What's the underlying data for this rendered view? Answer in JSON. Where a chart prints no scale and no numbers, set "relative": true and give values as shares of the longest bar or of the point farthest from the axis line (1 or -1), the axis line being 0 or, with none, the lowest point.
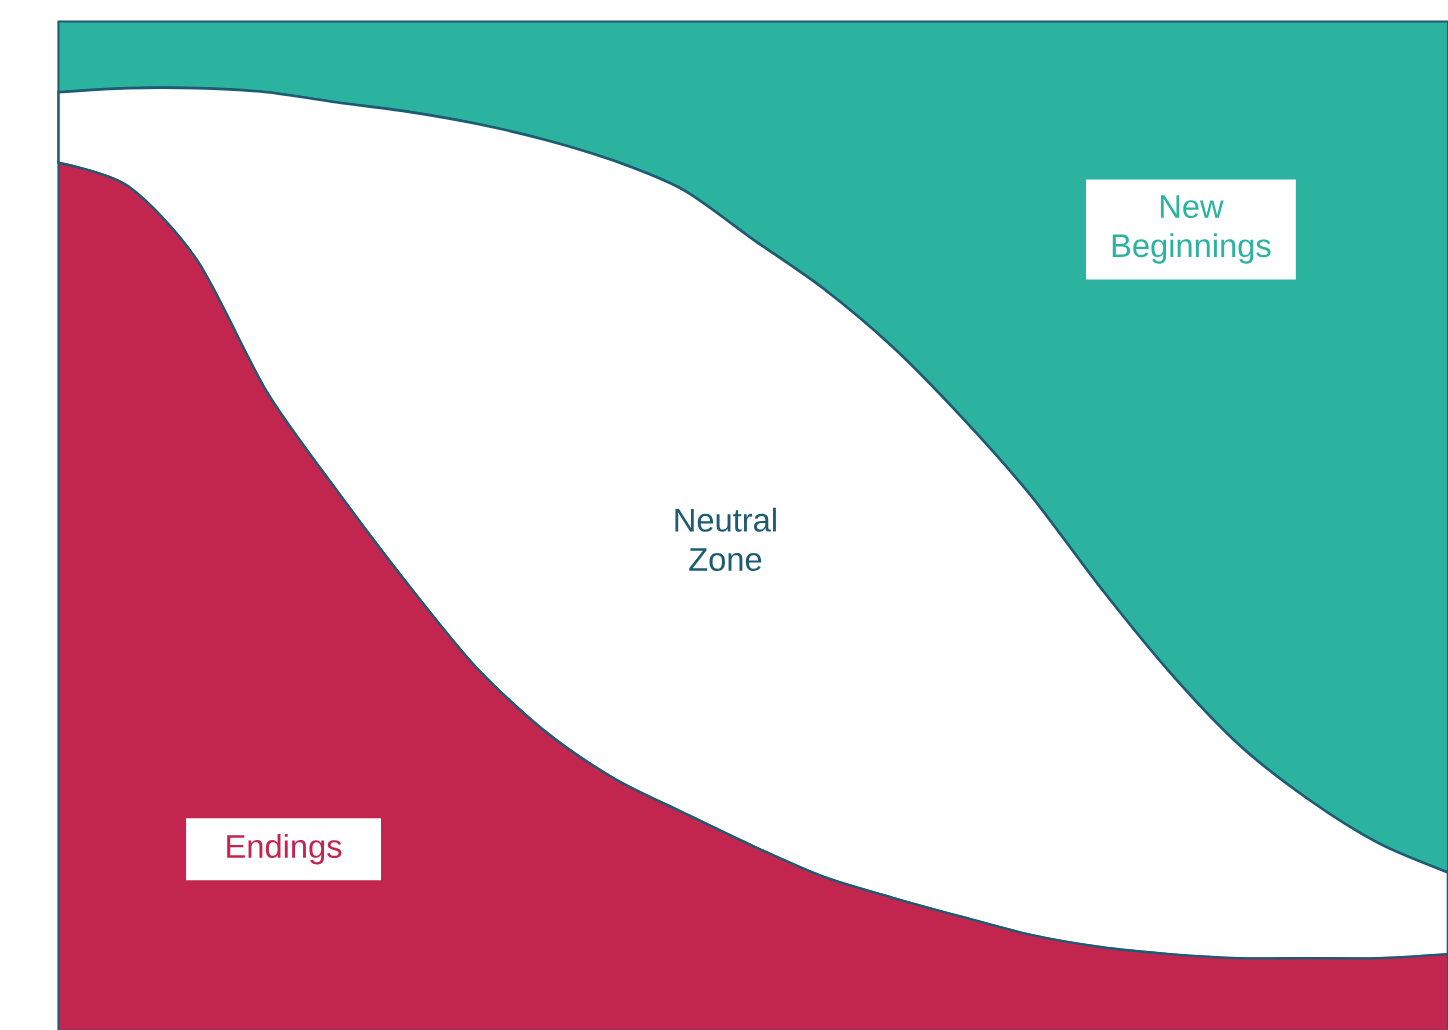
{
  "chart_data": {
    "type": "area",
    "stacked": true,
    "relative": true,
    "categories": [
      null,
      null,
      null,
      null,
      null,
      null,
      null,
      null,
      null,
      null,
      null,
      null,
      null,
      null,
      null,
      null,
      null,
      null,
      null,
      null,
      null
    ],
    "series": [
      {
        "name": "Endings",
        "color": "#c2264f",
        "values": [
          0.86,
          0.837,
          0.763,
          0.633,
          0.536,
          0.445,
          0.361,
          0.297,
          0.25,
          0.216,
          0.183,
          0.153,
          0.132,
          0.113,
          0.095,
          0.083,
          0.076,
          0.072,
          0.072,
          0.072,
          0.076
        ]
      },
      {
        "name": "Neutral Zone",
        "color": "#ffffff",
        "values": [
          0.07,
          0.097,
          0.171,
          0.297,
          0.384,
          0.466,
          0.538,
          0.586,
          0.612,
          0.617,
          0.601,
          0.583,
          0.546,
          0.495,
          0.435,
          0.356,
          0.279,
          0.211,
          0.157,
          0.114,
          0.081
        ]
      },
      {
        "name": "New Beginnings",
        "color": "#2bb3a0",
        "values": [
          0.07,
          0.066,
          0.066,
          0.07,
          0.08,
          0.089,
          0.101,
          0.117,
          0.138,
          0.167,
          0.216,
          0.264,
          0.322,
          0.392,
          0.47,
          0.561,
          0.645,
          0.717,
          0.771,
          0.814,
          0.843
        ]
      }
    ]
  }
}
